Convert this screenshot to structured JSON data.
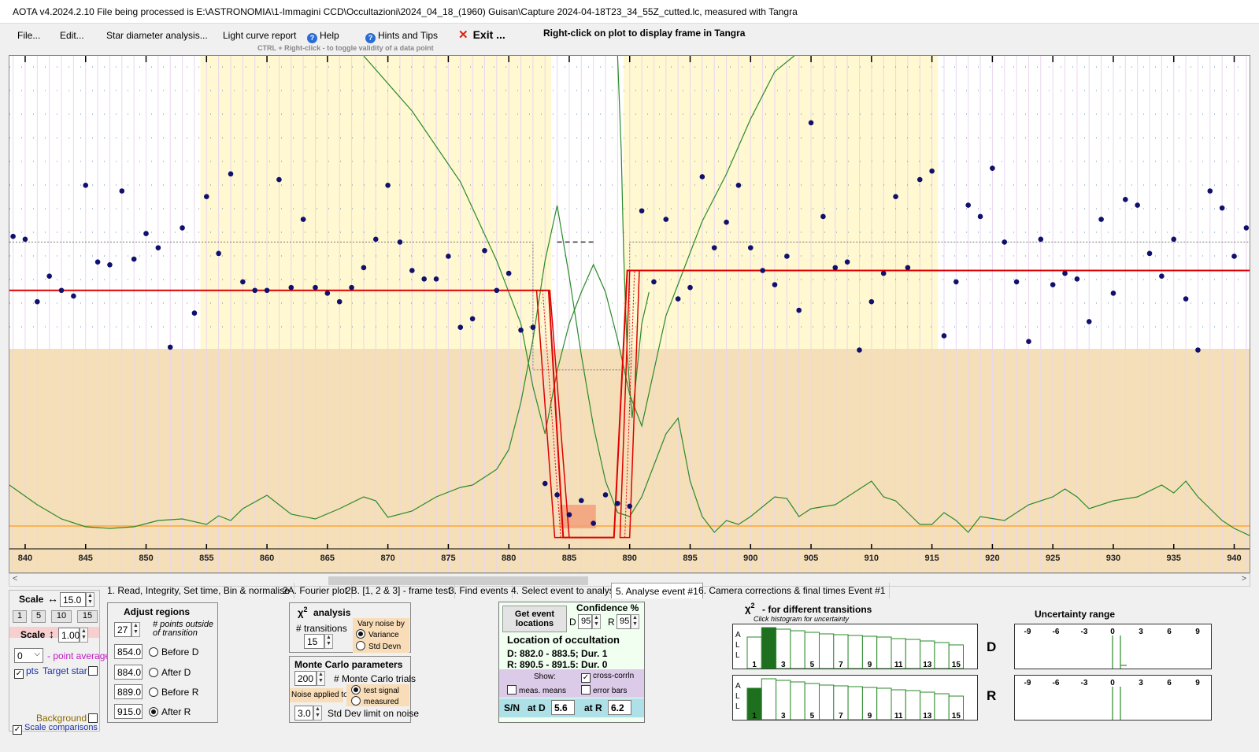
{
  "window": {
    "title": "AOTA v4.2024.2.10     File being processed is E:\\ASTRONOMIA\\1-Immagini CCD\\Occultazioni\\2024_04_18_(1960) Guisan\\Capture 2024-04-18T23_34_55Z_cutted.lc, measured with Tangra"
  },
  "menu": {
    "file": "File...",
    "edit": "Edit...",
    "star_diameter": "Star diameter analysis...",
    "light_curve_report": "Light curve report",
    "help": "Help",
    "hints": "Hints and Tips",
    "exit": "Exit ...",
    "right_click_hint": "Right-click on plot to display frame in Tangra",
    "ctrl_hint": "CTRL + Right-click  -  to toggle validity of a data point"
  },
  "plot": {
    "x_ticks": [
      "840",
      "845",
      "850",
      "855",
      "860",
      "865",
      "870",
      "875",
      "880",
      "885",
      "890",
      "895",
      "900",
      "905",
      "910",
      "915",
      "920",
      "925",
      "930",
      "935",
      "940"
    ],
    "x_min": 838.7,
    "x_max": 941.4,
    "y_min": -0.08,
    "y_max": 1.6,
    "regions": [
      {
        "start": 854.5,
        "end": 915.5,
        "kind": "analysis"
      },
      {
        "start": 883.5,
        "end": 889.5,
        "kind": "event"
      }
    ],
    "data_points": [
      [
        839,
        1.02
      ],
      [
        840,
        1.01
      ],
      [
        841,
        0.79
      ],
      [
        842,
        0.88
      ],
      [
        843,
        0.83
      ],
      [
        844,
        0.81
      ],
      [
        845,
        1.2
      ],
      [
        846,
        0.93
      ],
      [
        847,
        0.92
      ],
      [
        848,
        1.18
      ],
      [
        849,
        0.94
      ],
      [
        850,
        1.03
      ],
      [
        851,
        0.98
      ],
      [
        852,
        0.63
      ],
      [
        853,
        1.05
      ],
      [
        854,
        0.75
      ],
      [
        855,
        1.16
      ],
      [
        856,
        0.96
      ],
      [
        857,
        1.24
      ],
      [
        858,
        0.86
      ],
      [
        859,
        0.83
      ],
      [
        860,
        0.83
      ],
      [
        861,
        1.22
      ],
      [
        862,
        0.84
      ],
      [
        863,
        1.08
      ],
      [
        864,
        0.84
      ],
      [
        865,
        0.82
      ],
      [
        866,
        0.79
      ],
      [
        867,
        0.84
      ],
      [
        868,
        0.91
      ],
      [
        869,
        1.01
      ],
      [
        870,
        1.2
      ],
      [
        871,
        1.0
      ],
      [
        872,
        0.9
      ],
      [
        873,
        0.87
      ],
      [
        874,
        0.87
      ],
      [
        875,
        0.95
      ],
      [
        876,
        0.7
      ],
      [
        877,
        0.73
      ],
      [
        878,
        0.97
      ],
      [
        879,
        0.83
      ],
      [
        880,
        0.89
      ],
      [
        881,
        0.69
      ],
      [
        882,
        0.7
      ],
      [
        883,
        0.15
      ],
      [
        884,
        0.11
      ],
      [
        885,
        0.04
      ],
      [
        886,
        0.09
      ],
      [
        887,
        0.01
      ],
      [
        888,
        0.11
      ],
      [
        889,
        0.08
      ],
      [
        890,
        0.07
      ],
      [
        891,
        1.11
      ],
      [
        892,
        0.86
      ],
      [
        893,
        1.08
      ],
      [
        894,
        0.8
      ],
      [
        895,
        0.84
      ],
      [
        896,
        1.23
      ],
      [
        897,
        0.98
      ],
      [
        898,
        1.07
      ],
      [
        899,
        1.2
      ],
      [
        900,
        0.98
      ],
      [
        901,
        0.9
      ],
      [
        902,
        0.85
      ],
      [
        903,
        0.95
      ],
      [
        904,
        0.76
      ],
      [
        905,
        1.42
      ],
      [
        906,
        1.09
      ],
      [
        907,
        0.91
      ],
      [
        908,
        0.93
      ],
      [
        909,
        0.62
      ],
      [
        910,
        0.79
      ],
      [
        911,
        0.89
      ],
      [
        912,
        1.16
      ],
      [
        913,
        0.91
      ],
      [
        914,
        1.22
      ],
      [
        915,
        1.25
      ],
      [
        916,
        0.67
      ],
      [
        917,
        0.86
      ],
      [
        918,
        1.13
      ],
      [
        919,
        1.09
      ],
      [
        920,
        1.26
      ],
      [
        921,
        1.0
      ],
      [
        922,
        0.86
      ],
      [
        923,
        0.65
      ],
      [
        924,
        1.01
      ],
      [
        925,
        0.85
      ],
      [
        926,
        0.89
      ],
      [
        927,
        0.87
      ],
      [
        928,
        0.72
      ],
      [
        929,
        1.08
      ],
      [
        930,
        0.82
      ],
      [
        931,
        1.15
      ],
      [
        932,
        1.13
      ],
      [
        933,
        0.96
      ],
      [
        934,
        0.88
      ],
      [
        935,
        1.01
      ],
      [
        936,
        0.8
      ],
      [
        937,
        0.62
      ],
      [
        938,
        1.18
      ],
      [
        939,
        1.12
      ],
      [
        940,
        0.95
      ],
      [
        941,
        1.05
      ]
    ]
  },
  "tabs": [
    "1.  Read, Integrity, Set time, Bin & normalise",
    "2A. Fourier plot",
    "2B. [1, 2 & 3] - frame test",
    "3. Find events",
    "4. Select event to analyse",
    "5. Analyse event #1",
    "6. Camera corrections & final times Event #1"
  ],
  "scale": {
    "h_label": "Scale",
    "h_value": "15.0",
    "presets": [
      "1",
      "5",
      "10",
      "15"
    ],
    "v_label": "Scale",
    "v_value": "1.00",
    "point_avg_value": "0",
    "point_avg_label": "- point average",
    "pts_label": "pts",
    "target_star": "Target star",
    "background": "Background",
    "scale_comparisons": "Scale comparisons"
  },
  "adjust": {
    "title": "Adjust regions",
    "points_value": "27",
    "points_label": "# points outside of transition",
    "before_d_value": "854.0",
    "before_d": "Before D",
    "after_d_value": "884.0",
    "after_d": "After D",
    "before_r_value": "889.0",
    "before_r": "Before R",
    "after_r_value": "915.0",
    "after_r": "After R"
  },
  "chi2": {
    "title": "analysis",
    "transitions_label": "# transitions",
    "transitions_value": "15",
    "vary_label": "Vary noise by",
    "variance": "Variance",
    "std_devn": "Std Devn"
  },
  "monte_carlo": {
    "title": "Monte Carlo parameters",
    "trials_value": "200",
    "trials_label": "# Monte Carlo trials",
    "noise_applied": "Noise applied to",
    "test_signal": "test signal",
    "measured": "measured",
    "std_limit_value": "3.0",
    "std_limit_label": "Std Dev limit on noise"
  },
  "location": {
    "get_events": "Get event locations",
    "confidence_label": "Confidence %",
    "d_label": "D",
    "d_value": "95",
    "r_label": "R",
    "r_value": "95",
    "title": "Location of occultation",
    "d_line": "D: 882.0 - 883.5; Dur. 1",
    "r_line": "R: 890.5 - 891.5; Dur. 0",
    "show_label": "Show:",
    "cross_corr": "cross-corrln",
    "meas_means": "meas. means",
    "error_bars": "error bars",
    "sn_label": "S/N",
    "at_d_label": "at D",
    "at_d_value": "5.6",
    "at_r_label": "at R",
    "at_r_value": "6.2"
  },
  "chi2_hist": {
    "title": "- for different transitions",
    "subtitle": "Click histogram for uncertainty",
    "all_label": [
      "A",
      "L",
      "L"
    ],
    "ticks": [
      "1",
      "3",
      "5",
      "7",
      "9",
      "11",
      "13",
      "15"
    ],
    "d_label": "D",
    "r_label": "R"
  },
  "uncertainty": {
    "title": "Uncertainty range",
    "ticks": [
      "-9",
      "-6",
      "-3",
      "0",
      "3",
      "6",
      "9"
    ]
  }
}
